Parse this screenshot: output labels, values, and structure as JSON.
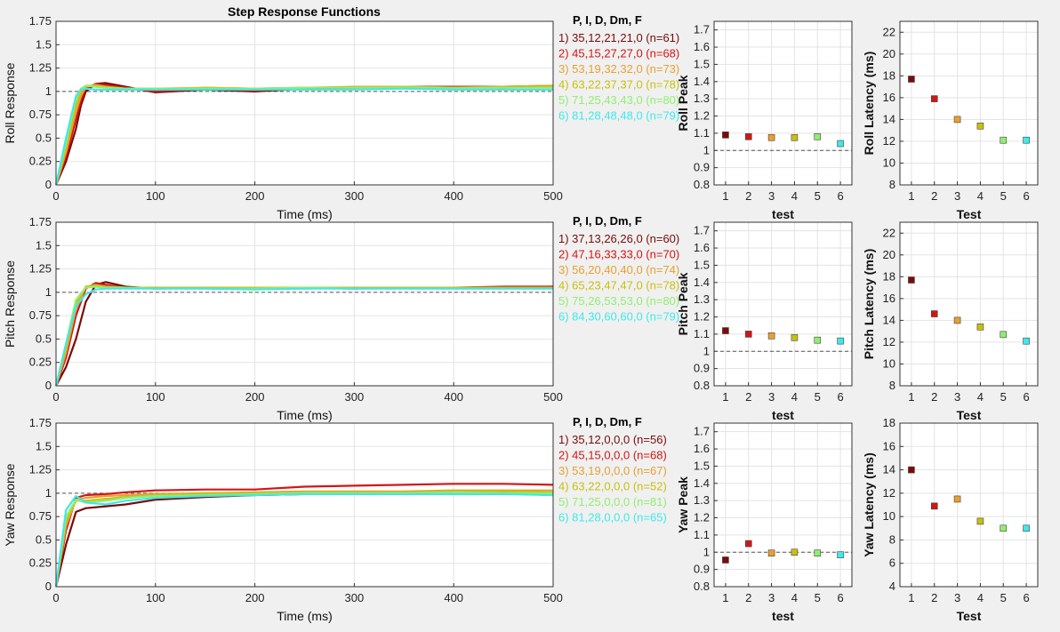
{
  "figure": {
    "title": "Step Response Functions",
    "legend_header": "P, I, D, Dm, F",
    "colors": [
      "#7a0a0a",
      "#d41515",
      "#e8a030",
      "#c8c010",
      "#90ee70",
      "#40e8e8"
    ]
  },
  "chart_data": [
    {
      "id": "roll-response",
      "type": "line",
      "ylabel": "Roll Response",
      "xlabel": "Time (ms)",
      "xlim": [
        0,
        500
      ],
      "ylim": [
        0,
        1.75
      ],
      "grid": true,
      "reference_line": 1,
      "x_ticks": [
        "0",
        "100",
        "200",
        "300",
        "400",
        "500"
      ],
      "y_ticks": [
        "0",
        "0.25",
        "0.5",
        "0.75",
        "1",
        "1.25",
        "1.5",
        "1.75"
      ],
      "legend": [
        "1) 35,12,21,21,0  (n=61)",
        "2) 45,15,27,27,0  (n=68)",
        "3) 53,19,32,32,0  (n=73)",
        "4) 63,22,37,37,0  (n=78)",
        "5) 71,25,43,43,0  (n=80)",
        "6) 81,28,48,48,0  (n=79)"
      ],
      "series": [
        {
          "x": [
            0,
            10,
            20,
            25,
            30,
            40,
            50,
            70,
            100,
            150,
            200,
            250,
            300,
            350,
            400,
            450,
            500
          ],
          "y": [
            0,
            0.25,
            0.6,
            0.85,
            1.0,
            1.08,
            1.09,
            1.05,
            0.99,
            1.02,
            1.0,
            1.03,
            1.04,
            1.05,
            1.05,
            1.04,
            1.05
          ]
        },
        {
          "x": [
            0,
            10,
            20,
            25,
            30,
            40,
            50,
            70,
            100,
            150,
            200,
            250,
            300,
            350,
            400,
            450,
            500
          ],
          "y": [
            0,
            0.3,
            0.7,
            0.9,
            1.03,
            1.08,
            1.07,
            1.04,
            1.0,
            1.03,
            1.01,
            1.04,
            1.04,
            1.05,
            1.05,
            1.05,
            1.06
          ]
        },
        {
          "x": [
            0,
            10,
            20,
            25,
            30,
            40,
            50,
            70,
            100,
            150,
            200,
            250,
            300,
            350,
            400,
            450,
            500
          ],
          "y": [
            0,
            0.35,
            0.78,
            0.95,
            1.05,
            1.07,
            1.05,
            1.03,
            1.02,
            1.04,
            1.03,
            1.04,
            1.05,
            1.05,
            1.04,
            1.05,
            1.06
          ]
        },
        {
          "x": [
            0,
            10,
            20,
            25,
            30,
            40,
            50,
            70,
            100,
            150,
            200,
            250,
            300,
            350,
            400,
            450,
            500
          ],
          "y": [
            0,
            0.4,
            0.85,
            1.0,
            1.06,
            1.06,
            1.05,
            1.03,
            1.03,
            1.04,
            1.03,
            1.04,
            1.04,
            1.05,
            1.04,
            1.04,
            1.05
          ]
        },
        {
          "x": [
            0,
            10,
            20,
            25,
            30,
            40,
            50,
            70,
            100,
            150,
            200,
            250,
            300,
            350,
            400,
            450,
            500
          ],
          "y": [
            0,
            0.45,
            0.92,
            1.03,
            1.06,
            1.05,
            1.04,
            1.03,
            1.03,
            1.03,
            1.03,
            1.04,
            1.04,
            1.04,
            1.04,
            1.04,
            1.04
          ]
        },
        {
          "x": [
            0,
            10,
            20,
            25,
            30,
            40,
            50,
            70,
            100,
            150,
            200,
            250,
            300,
            350,
            400,
            450,
            500
          ],
          "y": [
            0,
            0.5,
            0.95,
            1.02,
            1.03,
            1.02,
            1.02,
            1.02,
            1.02,
            1.02,
            1.02,
            1.02,
            1.02,
            1.03,
            1.02,
            1.02,
            1.02
          ]
        }
      ]
    },
    {
      "id": "roll-peak",
      "type": "scatter",
      "ylabel": "Roll Peak",
      "xlabel": "test",
      "xlim": [
        0.5,
        6.5
      ],
      "ylim": [
        0.8,
        1.75
      ],
      "grid": true,
      "reference_line": 1,
      "x_ticks": [
        "1",
        "2",
        "3",
        "4",
        "5",
        "6"
      ],
      "y_ticks": [
        "0.8",
        "0.9",
        "1",
        "1.1",
        "1.2",
        "1.3",
        "1.4",
        "1.5",
        "1.6",
        "1.7"
      ],
      "x": [
        1,
        2,
        3,
        4,
        5,
        6
      ],
      "y": [
        1.09,
        1.08,
        1.075,
        1.075,
        1.08,
        1.04
      ]
    },
    {
      "id": "roll-latency",
      "type": "scatter",
      "ylabel": "Roll Latency (ms)",
      "xlabel": "Test",
      "xlim": [
        0.5,
        6.5
      ],
      "ylim": [
        8,
        23
      ],
      "grid": true,
      "x_ticks": [
        "1",
        "2",
        "3",
        "4",
        "5",
        "6"
      ],
      "y_ticks": [
        "8",
        "10",
        "12",
        "14",
        "16",
        "18",
        "20",
        "22"
      ],
      "x": [
        1,
        2,
        3,
        4,
        5,
        6
      ],
      "y": [
        17.7,
        15.9,
        14.0,
        13.4,
        12.1,
        12.1
      ]
    },
    {
      "id": "pitch-response",
      "type": "line",
      "ylabel": "Pitch Response",
      "xlabel": "Time (ms)",
      "xlim": [
        0,
        500
      ],
      "ylim": [
        0,
        1.75
      ],
      "grid": true,
      "reference_line": 1,
      "x_ticks": [
        "0",
        "100",
        "200",
        "300",
        "400",
        "500"
      ],
      "y_ticks": [
        "0",
        "0.25",
        "0.5",
        "0.75",
        "1",
        "1.25",
        "1.5",
        "1.75"
      ],
      "legend": [
        "1) 37,13,26,26,0  (n=60)",
        "2) 47,16,33,33,0  (n=70)",
        "3) 56,20,40,40,0  (n=74)",
        "4) 65,23,47,47,0  (n=78)",
        "5) 75,26,53,53,0  (n=80)",
        "6) 84,30,60,60,0  (n=79)"
      ],
      "series": [
        {
          "x": [
            0,
            10,
            20,
            30,
            40,
            50,
            70,
            100,
            150,
            200,
            250,
            300,
            350,
            400,
            450,
            500
          ],
          "y": [
            0,
            0.2,
            0.5,
            0.9,
            1.08,
            1.11,
            1.06,
            1.04,
            1.05,
            1.04,
            1.05,
            1.04,
            1.05,
            1.05,
            1.05,
            1.06
          ]
        },
        {
          "x": [
            0,
            10,
            20,
            30,
            40,
            50,
            70,
            100,
            150,
            200,
            250,
            300,
            350,
            400,
            450,
            500
          ],
          "y": [
            0,
            0.3,
            0.75,
            1.04,
            1.1,
            1.08,
            1.05,
            1.05,
            1.05,
            1.05,
            1.05,
            1.05,
            1.05,
            1.05,
            1.06,
            1.06
          ]
        },
        {
          "x": [
            0,
            10,
            20,
            30,
            40,
            50,
            70,
            100,
            150,
            200,
            250,
            300,
            350,
            400,
            450,
            500
          ],
          "y": [
            0,
            0.35,
            0.82,
            1.06,
            1.08,
            1.06,
            1.05,
            1.04,
            1.05,
            1.05,
            1.04,
            1.05,
            1.05,
            1.05,
            1.05,
            1.05
          ]
        },
        {
          "x": [
            0,
            10,
            20,
            30,
            40,
            50,
            70,
            100,
            150,
            200,
            250,
            300,
            350,
            400,
            450,
            500
          ],
          "y": [
            0,
            0.4,
            0.88,
            1.06,
            1.07,
            1.06,
            1.05,
            1.05,
            1.05,
            1.05,
            1.05,
            1.05,
            1.05,
            1.05,
            1.05,
            1.05
          ]
        },
        {
          "x": [
            0,
            10,
            20,
            30,
            40,
            50,
            70,
            100,
            150,
            200,
            250,
            300,
            350,
            400,
            450,
            500
          ],
          "y": [
            0,
            0.45,
            0.92,
            1.05,
            1.06,
            1.05,
            1.05,
            1.04,
            1.04,
            1.04,
            1.05,
            1.04,
            1.04,
            1.04,
            1.04,
            1.04
          ]
        },
        {
          "x": [
            0,
            10,
            20,
            30,
            40,
            50,
            70,
            100,
            150,
            200,
            250,
            300,
            350,
            400,
            450,
            500
          ],
          "y": [
            0,
            0.45,
            0.85,
            0.98,
            1.03,
            1.04,
            1.04,
            1.04,
            1.04,
            1.03,
            1.04,
            1.04,
            1.04,
            1.04,
            1.04,
            1.04
          ]
        }
      ]
    },
    {
      "id": "pitch-peak",
      "type": "scatter",
      "ylabel": "Pitch Peak",
      "xlabel": "test",
      "xlim": [
        0.5,
        6.5
      ],
      "ylim": [
        0.8,
        1.75
      ],
      "grid": true,
      "reference_line": 1,
      "x_ticks": [
        "1",
        "2",
        "3",
        "4",
        "5",
        "6"
      ],
      "y_ticks": [
        "0.8",
        "0.9",
        "1",
        "1.1",
        "1.2",
        "1.3",
        "1.4",
        "1.5",
        "1.6",
        "1.7"
      ],
      "x": [
        1,
        2,
        3,
        4,
        5,
        6
      ],
      "y": [
        1.12,
        1.1,
        1.09,
        1.08,
        1.065,
        1.06
      ]
    },
    {
      "id": "pitch-latency",
      "type": "scatter",
      "ylabel": "Pitch Latency (ms)",
      "xlabel": "Test",
      "xlim": [
        0.5,
        6.5
      ],
      "ylim": [
        8,
        23
      ],
      "grid": true,
      "x_ticks": [
        "1",
        "2",
        "3",
        "4",
        "5",
        "6"
      ],
      "y_ticks": [
        "8",
        "10",
        "12",
        "14",
        "16",
        "18",
        "20",
        "22"
      ],
      "x": [
        1,
        2,
        3,
        4,
        5,
        6
      ],
      "y": [
        17.7,
        14.6,
        14.0,
        13.4,
        12.7,
        12.1
      ]
    },
    {
      "id": "yaw-response",
      "type": "line",
      "ylabel": "Yaw Response",
      "xlabel": "Time (ms)",
      "xlim": [
        0,
        500
      ],
      "ylim": [
        0,
        1.75
      ],
      "grid": true,
      "reference_line": 1,
      "x_ticks": [
        "0",
        "100",
        "200",
        "300",
        "400",
        "500"
      ],
      "y_ticks": [
        "0",
        "0.25",
        "0.5",
        "0.75",
        "1",
        "1.25",
        "1.5",
        "1.75"
      ],
      "legend": [
        "1) 35,12,0,0,0  (n=56)",
        "2) 45,15,0,0,0  (n=68)",
        "3) 53,19,0,0,0  (n=67)",
        "4) 63,22,0,0,0  (n=52)",
        "5) 71,25,0,0,0  (n=81)",
        "6) 81,28,0,0,0  (n=65)"
      ],
      "series": [
        {
          "x": [
            0,
            10,
            20,
            30,
            50,
            70,
            100,
            150,
            200,
            250,
            300,
            350,
            400,
            450,
            500
          ],
          "y": [
            0,
            0.45,
            0.8,
            0.84,
            0.86,
            0.88,
            0.93,
            0.96,
            0.98,
            0.99,
            0.99,
            1.0,
            0.99,
            1.0,
            0.98
          ]
        },
        {
          "x": [
            0,
            10,
            20,
            30,
            50,
            70,
            100,
            150,
            200,
            250,
            300,
            350,
            400,
            450,
            500
          ],
          "y": [
            0,
            0.6,
            0.95,
            0.98,
            0.99,
            1.01,
            1.03,
            1.04,
            1.04,
            1.07,
            1.08,
            1.09,
            1.1,
            1.1,
            1.09
          ]
        },
        {
          "x": [
            0,
            10,
            20,
            30,
            50,
            70,
            100,
            150,
            200,
            250,
            300,
            350,
            400,
            450,
            500
          ],
          "y": [
            0,
            0.65,
            0.93,
            0.95,
            0.97,
            0.98,
            0.99,
            1.0,
            1.01,
            1.02,
            1.02,
            1.02,
            1.03,
            1.03,
            1.03
          ]
        },
        {
          "x": [
            0,
            10,
            20,
            30,
            50,
            70,
            100,
            150,
            200,
            250,
            300,
            350,
            400,
            450,
            500
          ],
          "y": [
            0,
            0.7,
            0.92,
            0.92,
            0.94,
            0.96,
            0.98,
            1.0,
            1.0,
            1.01,
            1.01,
            1.01,
            1.02,
            1.02,
            1.01
          ]
        },
        {
          "x": [
            0,
            10,
            20,
            30,
            50,
            70,
            100,
            150,
            200,
            250,
            300,
            350,
            400,
            450,
            500
          ],
          "y": [
            0,
            0.75,
            0.93,
            0.9,
            0.92,
            0.95,
            0.97,
            0.98,
            0.99,
            1.0,
            1.0,
            1.0,
            1.01,
            1.0,
            1.0
          ]
        },
        {
          "x": [
            0,
            10,
            20,
            30,
            50,
            70,
            100,
            150,
            200,
            250,
            300,
            350,
            400,
            450,
            500
          ],
          "y": [
            0,
            0.82,
            0.97,
            0.9,
            0.88,
            0.92,
            0.95,
            0.97,
            0.98,
            0.99,
            0.99,
            0.99,
            0.99,
            0.99,
            0.98
          ]
        }
      ]
    },
    {
      "id": "yaw-peak",
      "type": "scatter",
      "ylabel": "Yaw Peak",
      "xlabel": "test",
      "xlim": [
        0.5,
        6.5
      ],
      "ylim": [
        0.8,
        1.75
      ],
      "grid": true,
      "reference_line": 1,
      "x_ticks": [
        "1",
        "2",
        "3",
        "4",
        "5",
        "6"
      ],
      "y_ticks": [
        "0.8",
        "0.9",
        "1",
        "1.1",
        "1.2",
        "1.3",
        "1.4",
        "1.5",
        "1.6",
        "1.7"
      ],
      "x": [
        1,
        2,
        3,
        4,
        5,
        6
      ],
      "y": [
        0.955,
        1.05,
        0.995,
        1.0,
        0.995,
        0.985
      ]
    },
    {
      "id": "yaw-latency",
      "type": "scatter",
      "ylabel": "Yaw Latency (ms)",
      "xlabel": "Test",
      "xlim": [
        0.5,
        6.5
      ],
      "ylim": [
        4,
        18
      ],
      "grid": true,
      "x_ticks": [
        "1",
        "2",
        "3",
        "4",
        "5",
        "6"
      ],
      "y_ticks": [
        "4",
        "6",
        "8",
        "10",
        "12",
        "14",
        "16",
        "18"
      ],
      "x": [
        1,
        2,
        3,
        4,
        5,
        6
      ],
      "y": [
        14.0,
        10.9,
        11.5,
        9.6,
        9.0,
        9.0
      ]
    }
  ]
}
